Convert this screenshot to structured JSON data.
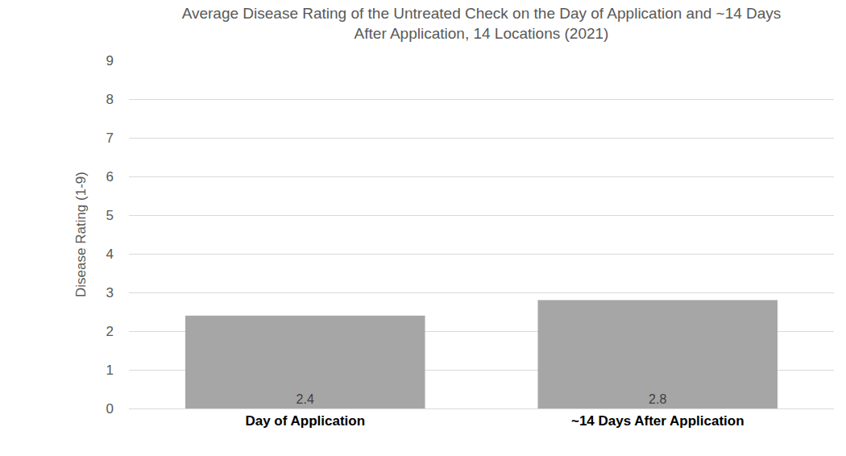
{
  "chart_data": {
    "type": "bar",
    "title": "Average Disease Rating of the Untreated Check on the Day of Application and ~14 Days\nAfter Application, 14 Locations (2021)",
    "y_label": "Disease Rating (1-9)",
    "categories": [
      "Day of Application",
      "~14 Days After Application"
    ],
    "values": [
      2.4,
      2.8
    ],
    "color": "#a6a6a6",
    "ylim": [
      0,
      9
    ],
    "yticks": [
      0,
      1,
      2,
      3,
      4,
      5,
      6,
      7,
      8,
      9
    ],
    "grid": true,
    "data_labels": true
  }
}
